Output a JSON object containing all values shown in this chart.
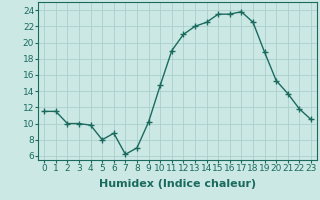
{
  "x": [
    0,
    1,
    2,
    3,
    4,
    5,
    6,
    7,
    8,
    9,
    10,
    11,
    12,
    13,
    14,
    15,
    16,
    17,
    18,
    19,
    20,
    21,
    22,
    23
  ],
  "y": [
    11.5,
    11.5,
    10.0,
    10.0,
    9.8,
    8.0,
    8.8,
    6.2,
    7.0,
    10.2,
    14.7,
    19.0,
    21.0,
    22.0,
    22.5,
    23.5,
    23.5,
    23.8,
    22.5,
    18.8,
    15.3,
    13.7,
    11.8,
    10.5
  ],
  "line_color": "#1a6b5e",
  "marker": "+",
  "marker_size": 4,
  "line_width": 1.0,
  "bg_color": "#cce8e5",
  "grid_color": "#aacfcc",
  "xlabel": "Humidex (Indice chaleur)",
  "xlabel_fontsize": 8,
  "ylabel_ticks": [
    6,
    8,
    10,
    12,
    14,
    16,
    18,
    20,
    22,
    24
  ],
  "xlim": [
    -0.5,
    23.5
  ],
  "ylim": [
    5.5,
    25.0
  ],
  "xtick_labels": [
    "0",
    "1",
    "2",
    "3",
    "4",
    "5",
    "6",
    "7",
    "8",
    "9",
    "10",
    "11",
    "12",
    "13",
    "14",
    "15",
    "16",
    "17",
    "18",
    "19",
    "20",
    "21",
    "22",
    "23"
  ],
  "tick_fontsize": 6.5
}
